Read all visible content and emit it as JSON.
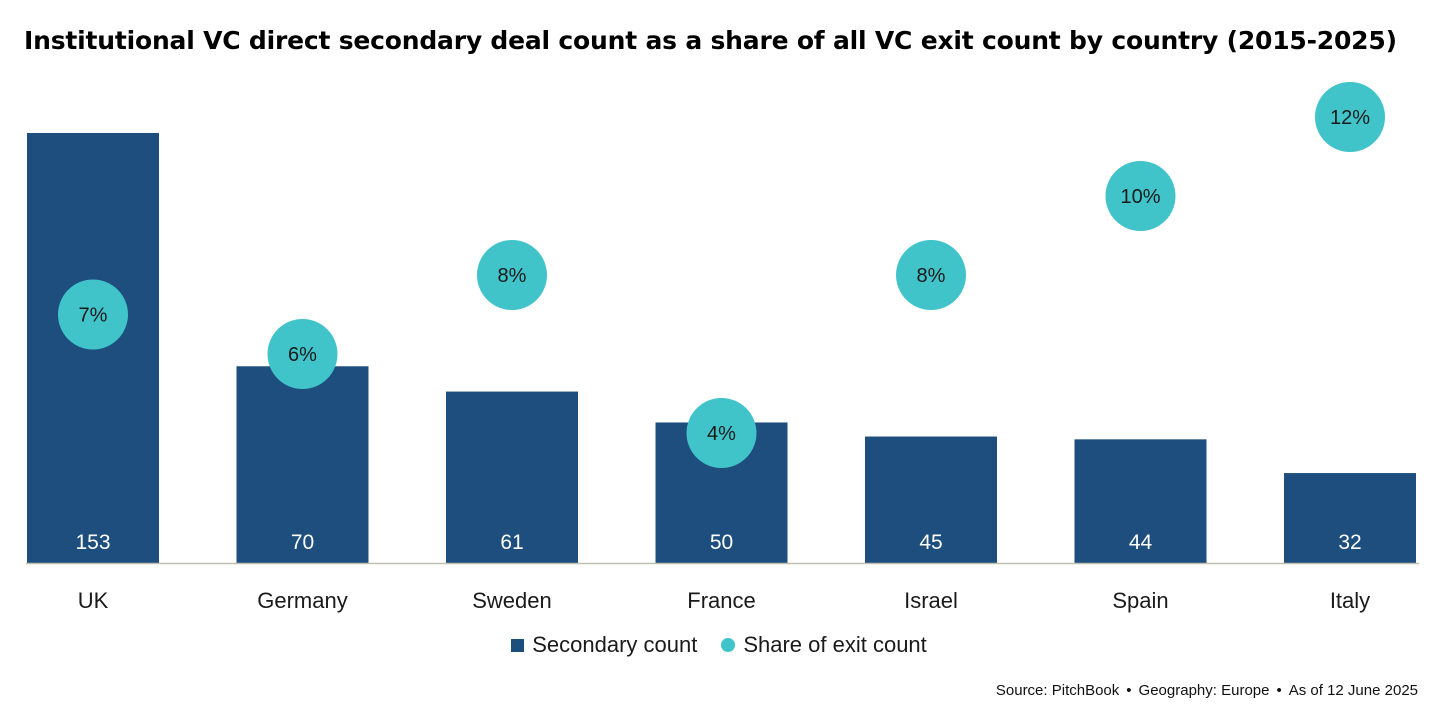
{
  "title": "Institutional VC direct secondary deal count as a share of all VC exit count by country (2015-2025)",
  "colors": {
    "bar": "#1d4e7e",
    "bubble": "#40c4ca",
    "axis": "#bfbfb0"
  },
  "legend": {
    "bars_label": "Secondary count",
    "bubbles_label": "Share of exit count"
  },
  "source": {
    "source": "Source: PitchBook",
    "geography": "Geography: Europe",
    "asof": "As of 12 June 2025"
  },
  "chart_data": {
    "type": "bar",
    "title": "Institutional VC direct secondary deal count as a share of all VC exit count by country (2015-2025)",
    "categories": [
      "UK",
      "Germany",
      "Sweden",
      "France",
      "Israel",
      "Spain",
      "Italy"
    ],
    "series": [
      {
        "name": "Secondary count",
        "type": "bar",
        "values": [
          153,
          70,
          61,
          50,
          45,
          44,
          32
        ],
        "labels": [
          "153",
          "70",
          "61",
          "50",
          "45",
          "44",
          "32"
        ]
      },
      {
        "name": "Share of exit count",
        "type": "scatter",
        "values": [
          7,
          6,
          8,
          4,
          8,
          10,
          12
        ],
        "labels": [
          "7%",
          "6%",
          "8%",
          "4%",
          "8%",
          "10%",
          "12%"
        ]
      }
    ],
    "ylim_bars": [
      0,
      153
    ],
    "ylim_share": [
      0,
      12
    ],
    "grid": false,
    "legend_position": "bottom"
  }
}
